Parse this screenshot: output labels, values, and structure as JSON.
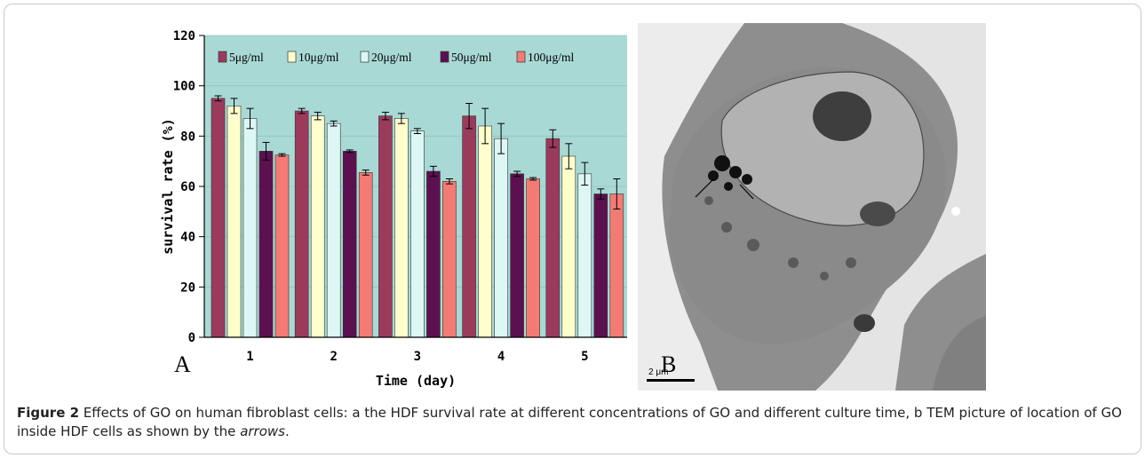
{
  "figure": {
    "panel_a_letter": "A",
    "panel_b_letter": "B",
    "scale_bar_label": "2 μm",
    "caption": {
      "label": "Figure 2",
      "text_part1": "Effects of GO on human fibroblast cells: a the HDF survival rate at different concentrations of GO and different culture time, b TEM picture of location of GO inside HDF cells as shown by the",
      "italic_word": "arrows",
      "end": "."
    }
  },
  "chart_data": {
    "type": "bar",
    "xlabel": "Time (day)",
    "ylabel": "survival rate (%)",
    "categories": [
      "1",
      "2",
      "3",
      "4",
      "5"
    ],
    "ylim": [
      0,
      120
    ],
    "yticks": [
      0,
      20,
      40,
      60,
      80,
      100,
      120
    ],
    "legend_position": "top",
    "background_color": "#a9d9d5",
    "series": [
      {
        "name": "5μg/ml",
        "color": "#9c3a5c",
        "values": [
          95,
          90,
          88,
          88,
          79
        ],
        "errors": [
          1,
          1,
          1.5,
          5,
          3.5
        ]
      },
      {
        "name": "10μg/ml",
        "color": "#ffffcc",
        "values": [
          92,
          88,
          87,
          84,
          72
        ],
        "errors": [
          3,
          1.5,
          2,
          7,
          5
        ]
      },
      {
        "name": "20μg/ml",
        "color": "#ddf7f5",
        "values": [
          87,
          85,
          82,
          79,
          65
        ],
        "errors": [
          4,
          1,
          1,
          6,
          4.5
        ]
      },
      {
        "name": "50μg/ml",
        "color": "#5c1050",
        "values": [
          74,
          74,
          66,
          65,
          57
        ],
        "errors": [
          3.5,
          0.5,
          2,
          1,
          2
        ]
      },
      {
        "name": "100μg/ml",
        "color": "#f37b74",
        "values": [
          72.5,
          65.5,
          62,
          63,
          57
        ],
        "errors": [
          0.5,
          1,
          1,
          0.5,
          6
        ]
      }
    ]
  }
}
